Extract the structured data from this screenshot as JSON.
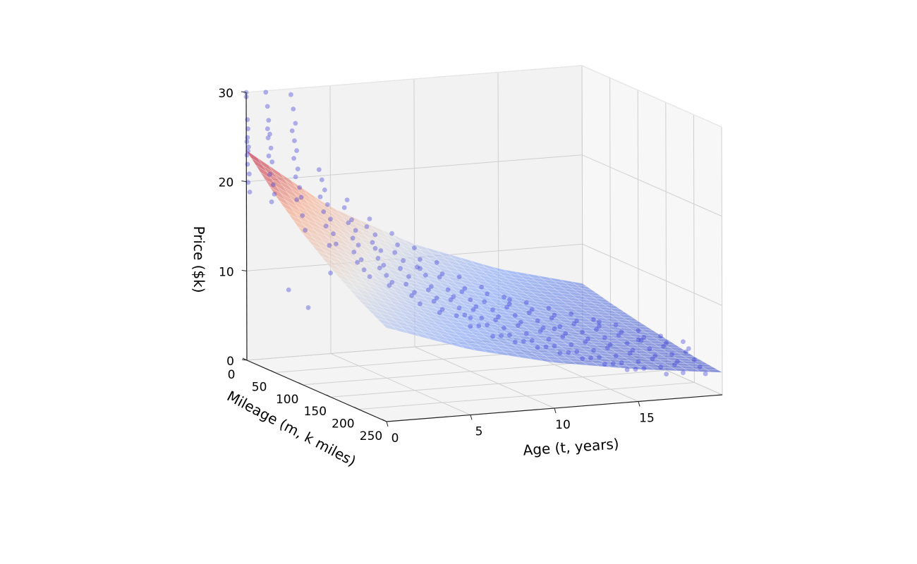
{
  "chart_data": {
    "type": "scatter",
    "subtype": "3d-surface-with-scatter",
    "title": "",
    "x_axis": {
      "label": "Age (t, years)",
      "range": [
        0,
        20
      ],
      "ticks": [
        0,
        5,
        10,
        15
      ]
    },
    "y_axis": {
      "label": "Mileage (m, k miles)",
      "range": [
        0,
        250
      ],
      "ticks": [
        0,
        50,
        100,
        150,
        200,
        250
      ]
    },
    "z_axis": {
      "label": "Price ($k)",
      "range": [
        0,
        30
      ],
      "ticks": [
        0,
        10,
        20,
        30
      ]
    },
    "grid": true,
    "surface": {
      "colormap": "coolwarm",
      "alpha": 0.6,
      "sample_rows": [
        {
          "age": 0,
          "mileage": [
            0,
            50,
            100,
            150,
            200,
            250
          ],
          "price": [
            23.5,
            20.0,
            17.0,
            14.5,
            12.3,
            10.5
          ]
        },
        {
          "age": 5,
          "mileage": [
            0,
            50,
            100,
            150,
            200,
            250
          ],
          "price": [
            16.4,
            14.0,
            11.9,
            10.1,
            8.6,
            7.3
          ]
        },
        {
          "age": 10,
          "mileage": [
            0,
            50,
            100,
            150,
            200,
            250
          ],
          "price": [
            11.5,
            9.8,
            8.3,
            7.1,
            6.0,
            5.1
          ]
        },
        {
          "age": 15,
          "mileage": [
            0,
            50,
            100,
            150,
            200,
            250
          ],
          "price": [
            8.0,
            6.8,
            5.8,
            4.9,
            4.2,
            3.6
          ]
        },
        {
          "age": 20,
          "mileage": [
            0,
            50,
            100,
            150,
            200,
            250
          ],
          "price": [
            5.6,
            4.8,
            4.1,
            3.5,
            2.9,
            2.5
          ]
        }
      ]
    },
    "scatter": {
      "color": "#2b2bd6",
      "alpha": 0.35,
      "points": [
        [
          0,
          0,
          30
        ],
        [
          0,
          0,
          29.5
        ],
        [
          0,
          2,
          27
        ],
        [
          0,
          3,
          26
        ],
        [
          0,
          2,
          25
        ],
        [
          0,
          1,
          24.5
        ],
        [
          0,
          4,
          24
        ],
        [
          0,
          3,
          23.5
        ],
        [
          0,
          1,
          23
        ],
        [
          0,
          2,
          22
        ],
        [
          0,
          5,
          21
        ],
        [
          0,
          3,
          20
        ],
        [
          0,
          6,
          19
        ],
        [
          1,
          5,
          30
        ],
        [
          1,
          8,
          28.5
        ],
        [
          1,
          10,
          27
        ],
        [
          1,
          8,
          26
        ],
        [
          1,
          12,
          25.5
        ],
        [
          1,
          9,
          25
        ],
        [
          1,
          14,
          24
        ],
        [
          1,
          10,
          23
        ],
        [
          1,
          16,
          22.5
        ],
        [
          1,
          12,
          21
        ],
        [
          1,
          18,
          20
        ],
        [
          1,
          20,
          19
        ],
        [
          1,
          15,
          18
        ],
        [
          2,
          20,
          30
        ],
        [
          2,
          24,
          28.5
        ],
        [
          2,
          28,
          27
        ],
        [
          2,
          22,
          26
        ],
        [
          2,
          26,
          25
        ],
        [
          2,
          30,
          24
        ],
        [
          2,
          25,
          23
        ],
        [
          2,
          32,
          22
        ],
        [
          2,
          28,
          21
        ],
        [
          2,
          35,
          20
        ],
        [
          2,
          38,
          19
        ],
        [
          2,
          30,
          18.5
        ],
        [
          2,
          40,
          17
        ],
        [
          2,
          45,
          15.5
        ],
        [
          3,
          40,
          22
        ],
        [
          3,
          45,
          21
        ],
        [
          3,
          50,
          20
        ],
        [
          3,
          42,
          19
        ],
        [
          3,
          55,
          18.5
        ],
        [
          3,
          48,
          17.5
        ],
        [
          3,
          60,
          17
        ],
        [
          3,
          52,
          16
        ],
        [
          3,
          65,
          15.5
        ],
        [
          3,
          70,
          14.5
        ],
        [
          3,
          58,
          14
        ],
        [
          4,
          60,
          19
        ],
        [
          4,
          55,
          18
        ],
        [
          4,
          68,
          17
        ],
        [
          4,
          62,
          16.5
        ],
        [
          4,
          75,
          16
        ],
        [
          4,
          70,
          15
        ],
        [
          4,
          80,
          14.5
        ],
        [
          4,
          72,
          13.5
        ],
        [
          4,
          85,
          13
        ],
        [
          4,
          90,
          12
        ],
        [
          4,
          100,
          11.5
        ],
        [
          4,
          78,
          12.5
        ],
        [
          5,
          70,
          17
        ],
        [
          5,
          65,
          16
        ],
        [
          5,
          80,
          15.5
        ],
        [
          5,
          75,
          14.5
        ],
        [
          5,
          90,
          14
        ],
        [
          5,
          85,
          13
        ],
        [
          5,
          95,
          12.5
        ],
        [
          5,
          100,
          11.5
        ],
        [
          5,
          110,
          11
        ],
        [
          5,
          88,
          12
        ],
        [
          5,
          105,
          10.5
        ],
        [
          6,
          80,
          15.5
        ],
        [
          6,
          90,
          14.5
        ],
        [
          6,
          85,
          13.5
        ],
        [
          6,
          100,
          13
        ],
        [
          6,
          95,
          12
        ],
        [
          6,
          110,
          11.5
        ],
        [
          6,
          105,
          10.5
        ],
        [
          6,
          120,
          10
        ],
        [
          6,
          115,
          9.5
        ],
        [
          6,
          130,
          9
        ],
        [
          7,
          90,
          14
        ],
        [
          7,
          100,
          13
        ],
        [
          7,
          95,
          12
        ],
        [
          7,
          110,
          11.5
        ],
        [
          7,
          120,
          10.5
        ],
        [
          7,
          115,
          10
        ],
        [
          7,
          130,
          9.5
        ],
        [
          7,
          125,
          9
        ],
        [
          7,
          140,
          8.5
        ],
        [
          7,
          135,
          8
        ],
        [
          8,
          100,
          12.5
        ],
        [
          8,
          110,
          11.5
        ],
        [
          8,
          105,
          11
        ],
        [
          8,
          120,
          10
        ],
        [
          8,
          130,
          9.5
        ],
        [
          8,
          125,
          9
        ],
        [
          8,
          140,
          8.5
        ],
        [
          8,
          150,
          8
        ],
        [
          8,
          135,
          7.5
        ],
        [
          8,
          160,
          7
        ],
        [
          9,
          110,
          11
        ],
        [
          9,
          120,
          10
        ],
        [
          9,
          115,
          9.5
        ],
        [
          9,
          130,
          9
        ],
        [
          9,
          140,
          8.5
        ],
        [
          9,
          135,
          8
        ],
        [
          9,
          150,
          7.5
        ],
        [
          9,
          160,
          7
        ],
        [
          9,
          145,
          6.5
        ],
        [
          9,
          170,
          6
        ],
        [
          10,
          120,
          10
        ],
        [
          10,
          130,
          9.5
        ],
        [
          10,
          125,
          8.5
        ],
        [
          10,
          140,
          8
        ],
        [
          10,
          150,
          7.5
        ],
        [
          10,
          145,
          7
        ],
        [
          10,
          160,
          6.5
        ],
        [
          10,
          170,
          6
        ],
        [
          10,
          155,
          5.5
        ],
        [
          10,
          180,
          5.5
        ],
        [
          11,
          130,
          9
        ],
        [
          11,
          140,
          8.5
        ],
        [
          11,
          135,
          8
        ],
        [
          11,
          150,
          7.5
        ],
        [
          11,
          160,
          7
        ],
        [
          11,
          155,
          6.5
        ],
        [
          11,
          170,
          6
        ],
        [
          11,
          180,
          5.5
        ],
        [
          11,
          165,
          5
        ],
        [
          11,
          190,
          5
        ],
        [
          12,
          140,
          8.5
        ],
        [
          12,
          150,
          8
        ],
        [
          12,
          145,
          7.5
        ],
        [
          12,
          160,
          7
        ],
        [
          12,
          170,
          6.5
        ],
        [
          12,
          165,
          6
        ],
        [
          12,
          180,
          5.5
        ],
        [
          12,
          190,
          5
        ],
        [
          12,
          175,
          4.5
        ],
        [
          12,
          200,
          4.5
        ],
        [
          13,
          150,
          8
        ],
        [
          13,
          160,
          7.5
        ],
        [
          13,
          155,
          7
        ],
        [
          13,
          170,
          6.5
        ],
        [
          13,
          180,
          6
        ],
        [
          13,
          175,
          5.5
        ],
        [
          13,
          190,
          5
        ],
        [
          13,
          200,
          4.5
        ],
        [
          13,
          185,
          4
        ],
        [
          13,
          210,
          4
        ],
        [
          14,
          160,
          7.5
        ],
        [
          14,
          170,
          7
        ],
        [
          14,
          165,
          6.5
        ],
        [
          14,
          180,
          6
        ],
        [
          14,
          190,
          5.5
        ],
        [
          14,
          185,
          5
        ],
        [
          14,
          200,
          4.5
        ],
        [
          14,
          210,
          4
        ],
        [
          14,
          195,
          3.5
        ],
        [
          14,
          220,
          3.5
        ],
        [
          15,
          170,
          7
        ],
        [
          15,
          180,
          6.5
        ],
        [
          15,
          175,
          6
        ],
        [
          15,
          190,
          5.5
        ],
        [
          15,
          200,
          5
        ],
        [
          15,
          195,
          4.5
        ],
        [
          15,
          210,
          4
        ],
        [
          15,
          220,
          3.5
        ],
        [
          15,
          205,
          3
        ],
        [
          15,
          230,
          3
        ],
        [
          16,
          180,
          6.5
        ],
        [
          16,
          190,
          6
        ],
        [
          16,
          185,
          5.5
        ],
        [
          16,
          200,
          5
        ],
        [
          16,
          210,
          4.5
        ],
        [
          16,
          205,
          4
        ],
        [
          16,
          220,
          3.5
        ],
        [
          16,
          230,
          3
        ],
        [
          16,
          215,
          2.5
        ],
        [
          17,
          190,
          6
        ],
        [
          17,
          200,
          5.5
        ],
        [
          17,
          195,
          5
        ],
        [
          17,
          210,
          4.5
        ],
        [
          17,
          220,
          4
        ],
        [
          17,
          215,
          3.5
        ],
        [
          17,
          230,
          3
        ],
        [
          17,
          240,
          2.5
        ],
        [
          18,
          200,
          5.5
        ],
        [
          18,
          210,
          5
        ],
        [
          18,
          205,
          4.5
        ],
        [
          18,
          220,
          4
        ],
        [
          18,
          230,
          3.5
        ],
        [
          18,
          225,
          3
        ],
        [
          18,
          240,
          2.5
        ],
        [
          19,
          210,
          5
        ],
        [
          19,
          220,
          4.5
        ],
        [
          19,
          215,
          4
        ],
        [
          19,
          230,
          3.5
        ],
        [
          19,
          240,
          3
        ],
        [
          19,
          250,
          2.5
        ],
        [
          2,
          15,
          8
        ],
        [
          4,
          30,
          10
        ],
        [
          6,
          50,
          13
        ],
        [
          8,
          70,
          11
        ],
        [
          10,
          100,
          6
        ],
        [
          12,
          110,
          8
        ],
        [
          14,
          130,
          5
        ],
        [
          16,
          150,
          6
        ],
        [
          18,
          160,
          4
        ],
        [
          3,
          20,
          6
        ]
      ]
    }
  }
}
